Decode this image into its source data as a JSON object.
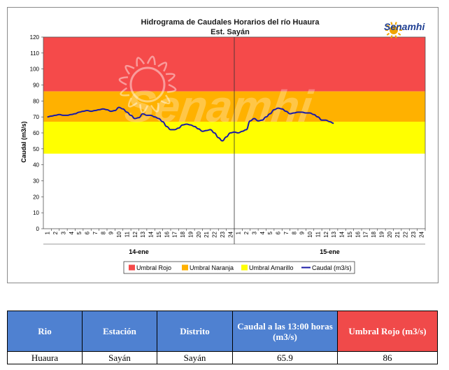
{
  "chart_data": {
    "type": "line",
    "title": "Hidrograma de Caudales Horarios del río Huaura",
    "subtitle": "Est. Sayán",
    "ylabel": "Caudal  (m3/s)",
    "ylim": [
      0,
      120
    ],
    "yticks": [
      0,
      10,
      20,
      30,
      40,
      50,
      60,
      70,
      80,
      90,
      100,
      110,
      120
    ],
    "x_hour_labels": [
      "1",
      "2",
      "3",
      "4",
      "5",
      "6",
      "7",
      "8",
      "9",
      "10",
      "11",
      "12",
      "13",
      "14",
      "15",
      "16",
      "17",
      "18",
      "19",
      "20",
      "21",
      "22",
      "23",
      "24"
    ],
    "days": [
      "14-ene",
      "15-ene"
    ],
    "thresholds": [
      {
        "name": "Umbral Rojo",
        "from": 86,
        "to": 120,
        "color": "#f54a4a"
      },
      {
        "name": "Umbral Naranja",
        "from": 67,
        "to": 86,
        "color": "#ffb100"
      },
      {
        "name": "Umbral Amarillo",
        "from": 47,
        "to": 67,
        "color": "#ffff00"
      }
    ],
    "series": [
      {
        "name": "Caudal (m3/s)",
        "color": "#1a1aa6",
        "x": [
          0,
          0.5,
          1,
          1.5,
          2,
          2.5,
          3,
          3.5,
          4,
          4.5,
          5,
          5.5,
          6,
          6.5,
          7,
          7.5,
          8,
          8.5,
          9,
          9.5,
          10,
          10.5,
          11,
          11.5,
          12,
          12.5,
          13,
          13.5,
          14,
          14.5,
          15,
          15.5,
          16,
          16.5,
          17,
          17.5,
          18,
          18.5,
          19,
          19.5,
          20,
          20.5,
          21,
          21.5,
          22,
          22.5,
          23,
          23.5,
          24,
          24.5,
          25,
          25.5,
          26,
          26.5,
          27,
          27.5,
          28,
          28.5,
          29,
          29.5,
          30,
          30.5,
          31,
          31.5,
          32,
          32.5,
          33,
          33.5,
          34,
          34.5,
          35,
          35.5,
          36
        ],
        "y": [
          70,
          70.5,
          71,
          71.5,
          71,
          71,
          71.5,
          72,
          73,
          73.5,
          74,
          73.5,
          74,
          74.5,
          75,
          74.5,
          73.5,
          74,
          76,
          75,
          73,
          71,
          69,
          69.5,
          72,
          71,
          71,
          70,
          69,
          67,
          64,
          62,
          62,
          63,
          65,
          65.5,
          65,
          64,
          62.5,
          61,
          61.5,
          62,
          60,
          57,
          55,
          57.5,
          60,
          60.5,
          60,
          61,
          62,
          67.5,
          69,
          67.5,
          68,
          70,
          72,
          74.5,
          75.5,
          75,
          73.5,
          72,
          72.5,
          73,
          73,
          72.5,
          72.5,
          71.5,
          70,
          68,
          68,
          67,
          66
        ]
      }
    ]
  },
  "legend": [
    "Umbral Rojo",
    "Umbral Naranja",
    "Umbral Amarillo",
    "Caudal (m3/s)"
  ],
  "logo": {
    "brand": "Senamhi",
    "watermark": "Senamhi"
  },
  "table": {
    "headers": [
      "Rio",
      "Estación",
      "Distrito",
      "Caudal a las 13:00 horas (m3/s)",
      "Umbral Rojo (m3/s)"
    ],
    "row": [
      "Huaura",
      "Sayán",
      "Sayán",
      "65.9",
      "86"
    ]
  }
}
